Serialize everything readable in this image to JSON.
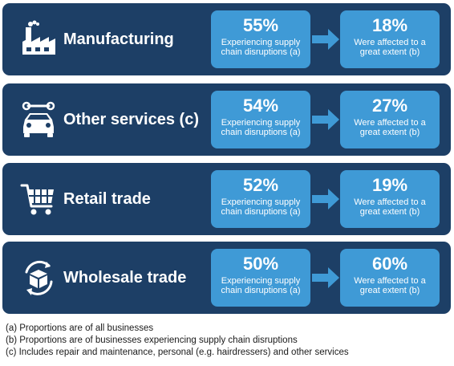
{
  "sectors": [
    {
      "name": "Manufacturing",
      "icon": "factory-icon",
      "disruption_pct": "55%",
      "disruption_desc": "Experiencing supply chain disruptions (a)",
      "extent_pct": "18%",
      "extent_desc": "Were affected to a great extent (b)"
    },
    {
      "name": "Other services (c)",
      "icon": "car-wrench-icon",
      "disruption_pct": "54%",
      "disruption_desc": "Experiencing supply chain disruptions (a)",
      "extent_pct": "27%",
      "extent_desc": "Were affected to a great extent (b)"
    },
    {
      "name": "Retail trade",
      "icon": "shopping-cart-icon",
      "disruption_pct": "52%",
      "disruption_desc": "Experiencing supply chain disruptions (a)",
      "extent_pct": "19%",
      "extent_desc": "Were affected to a great extent (b)"
    },
    {
      "name": "Wholesale trade",
      "icon": "box-cycle-icon",
      "disruption_pct": "50%",
      "disruption_desc": "Experiencing supply chain disruptions (a)",
      "extent_pct": "60%",
      "extent_desc": "Were affected to a great extent (b)"
    }
  ],
  "colors": {
    "panel": "#1d3f66",
    "box": "#3f9ad6",
    "arrow": "#3f9ad6"
  },
  "notes": [
    "(a) Proportions are of all businesses",
    "(b) Proportions are of businesses experiencing supply chain disruptions",
    "(c) Includes repair and maintenance, personal (e.g. hairdressers) and other services"
  ]
}
